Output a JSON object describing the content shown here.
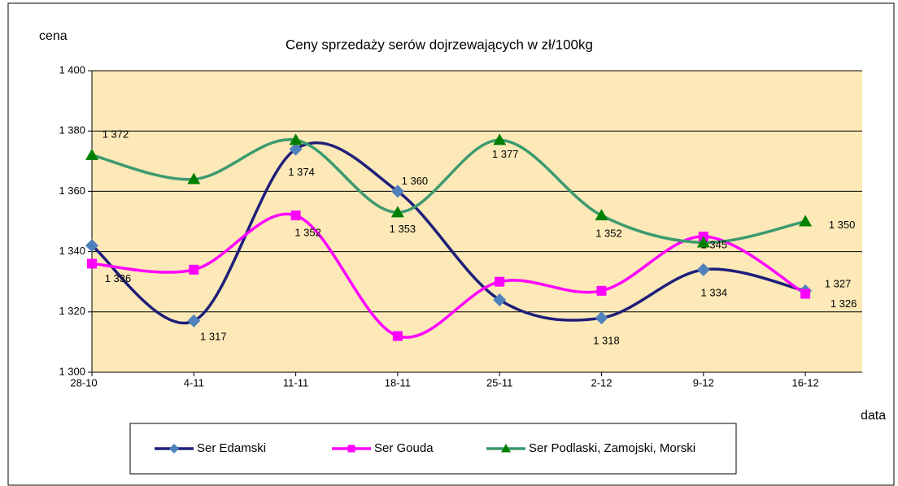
{
  "chart_data": {
    "type": "line",
    "title": "Ceny sprzedaży serów dojrzewających w zł/100kg",
    "y_axis_label": "cena",
    "x_axis_label": "data",
    "categories": [
      "28-10",
      "4-11",
      "11-11",
      "18-11",
      "25-11",
      "2-12",
      "9-12",
      "16-12"
    ],
    "series": [
      {
        "name": "Ser Edamski",
        "color": "#1f1f7a",
        "marker_color": "#4f81bd",
        "marker": "diamond",
        "values": [
          1342,
          1317,
          1374,
          1360,
          1324,
          1318,
          1334,
          1327
        ],
        "value_labels": [
          null,
          "1 317",
          "1 374",
          "1 360",
          null,
          "1 318",
          "1 334",
          "1 327"
        ]
      },
      {
        "name": "Ser Gouda",
        "color": "#ff00ff",
        "marker_color": "#ff00ff",
        "marker": "square",
        "values": [
          1336,
          1334,
          1352,
          1312,
          1330,
          1327,
          1345,
          1326
        ],
        "value_labels": [
          "1 336",
          null,
          "1 352",
          null,
          null,
          null,
          "1 345",
          "1 326"
        ]
      },
      {
        "name": "Ser Podlaski, Zamojski, Morski",
        "color": "#3c9a6e",
        "marker_color": "#008000",
        "marker": "triangle",
        "values": [
          1372,
          1364,
          1377,
          1353,
          1377,
          1352,
          1343,
          1350
        ],
        "value_labels": [
          "1 372",
          null,
          null,
          "1 353",
          "1 377",
          "1 352",
          null,
          "1 350"
        ]
      }
    ],
    "ylim": [
      1300,
      1400
    ],
    "yticks": [
      {
        "value": 1300,
        "label": "1 300"
      },
      {
        "value": 1320,
        "label": "1 320"
      },
      {
        "value": 1340,
        "label": "1 340"
      },
      {
        "value": 1360,
        "label": "1 360"
      },
      {
        "value": 1380,
        "label": "1 380"
      },
      {
        "value": 1400,
        "label": "1 400"
      }
    ],
    "grid": true,
    "legend": "bottom",
    "background": "#fde9b8"
  }
}
